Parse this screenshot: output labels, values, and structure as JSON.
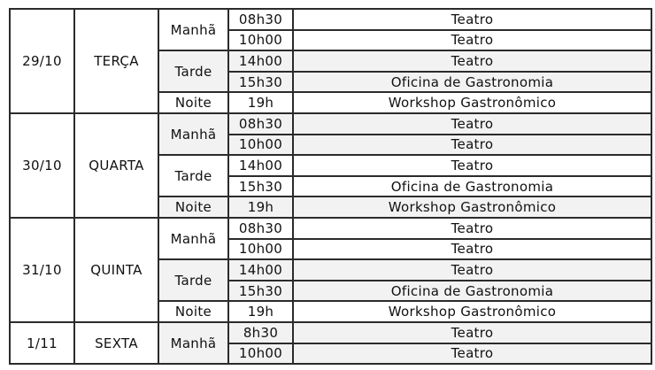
{
  "colors": {
    "border": "#2b2b2b",
    "shaded_cell": "#f2f2f2",
    "cell_background": "#ffffff",
    "text": "#111111"
  },
  "schedule": {
    "blocks": [
      {
        "date": "29/10",
        "day": "TERÇA",
        "periods": [
          {
            "label": "Manhã",
            "shaded": false,
            "slots": [
              {
                "time": "08h30",
                "activity": "Teatro"
              },
              {
                "time": "10h00",
                "activity": "Teatro"
              }
            ]
          },
          {
            "label": "Tarde",
            "shaded": true,
            "slots": [
              {
                "time": "14h00",
                "activity": "Teatro"
              },
              {
                "time": "15h30",
                "activity": "Oficina de Gastronomia"
              }
            ]
          },
          {
            "label": "Noite",
            "shaded": false,
            "slots": [
              {
                "time": "19h",
                "activity": "Workshop Gastronômico"
              }
            ]
          }
        ]
      },
      {
        "date": "30/10",
        "day": "QUARTA",
        "periods": [
          {
            "label": "Manhã",
            "shaded": true,
            "slots": [
              {
                "time": "08h30",
                "activity": "Teatro"
              },
              {
                "time": "10h00",
                "activity": "Teatro"
              }
            ]
          },
          {
            "label": "Tarde",
            "shaded": false,
            "slots": [
              {
                "time": "14h00",
                "activity": "Teatro"
              },
              {
                "time": "15h30",
                "activity": "Oficina de Gastronomia"
              }
            ]
          },
          {
            "label": "Noite",
            "shaded": true,
            "slots": [
              {
                "time": "19h",
                "activity": "Workshop Gastronômico"
              }
            ]
          }
        ]
      },
      {
        "date": "31/10",
        "day": "QUINTA",
        "periods": [
          {
            "label": "Manhã",
            "shaded": false,
            "slots": [
              {
                "time": "08h30",
                "activity": "Teatro"
              },
              {
                "time": "10h00",
                "activity": "Teatro"
              }
            ]
          },
          {
            "label": "Tarde",
            "shaded": true,
            "slots": [
              {
                "time": "14h00",
                "activity": "Teatro"
              },
              {
                "time": "15h30",
                "activity": "Oficina de Gastronomia"
              }
            ]
          },
          {
            "label": "Noite",
            "shaded": false,
            "slots": [
              {
                "time": "19h",
                "activity": "Workshop Gastronômico"
              }
            ]
          }
        ]
      },
      {
        "date": "1/11",
        "day": "SEXTA",
        "periods": [
          {
            "label": "Manhã",
            "shaded": true,
            "slots": [
              {
                "time": "8h30",
                "activity": "Teatro"
              },
              {
                "time": "10h00",
                "activity": "Teatro"
              }
            ]
          }
        ]
      }
    ]
  }
}
